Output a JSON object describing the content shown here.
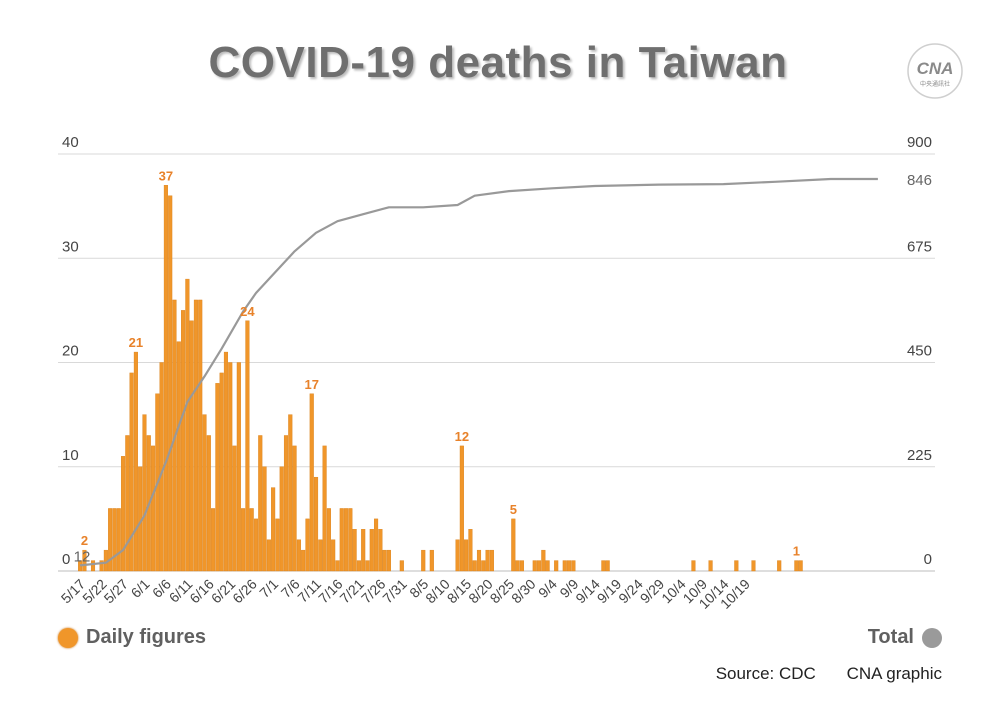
{
  "title": "COVID-19 deaths in Taiwan",
  "logo_text": "CNA 中央通訊社",
  "colors": {
    "bar": "#f0962a",
    "bar_edge": "#d9801a",
    "line": "#999999",
    "label": "#e8822a",
    "grid": "#d9d9d9",
    "axis_text": "#444444"
  },
  "legend": {
    "daily": "Daily figures",
    "total": "Total"
  },
  "footer": {
    "source": "Source: CDC",
    "credit": "CNA graphic"
  },
  "chart_data": {
    "type": "bar",
    "start_date": "5/17",
    "x_tick_labels": [
      "5/17",
      "5/22",
      "5/27",
      "6/1",
      "6/6",
      "6/11",
      "6/16",
      "6/21",
      "6/26",
      "7/1",
      "7/6",
      "7/11",
      "7/16",
      "7/21",
      "7/26",
      "7/31",
      "8/5",
      "8/10",
      "8/15",
      "8/20",
      "8/25",
      "8/30",
      "9/4",
      "9/9",
      "9/14",
      "9/19",
      "9/24",
      "9/29",
      "10/4",
      "10/9",
      "10/14",
      "10/19"
    ],
    "left_axis": {
      "ticks": [
        0,
        10,
        20,
        30,
        40
      ],
      "range": [
        0,
        40
      ]
    },
    "right_axis": {
      "ticks": [
        0,
        225,
        450,
        675,
        900
      ],
      "range": [
        0,
        900
      ]
    },
    "grid": true,
    "series": [
      {
        "name": "Daily figures",
        "kind": "bar",
        "axis": "left",
        "values": [
          1,
          2,
          0,
          1,
          0,
          1,
          2,
          6,
          6,
          6,
          11,
          13,
          19,
          21,
          10,
          15,
          13,
          12,
          17,
          20,
          37,
          36,
          26,
          22,
          25,
          28,
          24,
          26,
          26,
          15,
          13,
          6,
          18,
          19,
          21,
          20,
          12,
          20,
          6,
          24,
          6,
          5,
          13,
          10,
          3,
          8,
          5,
          10,
          13,
          15,
          12,
          3,
          2,
          5,
          17,
          9,
          3,
          12,
          6,
          3,
          1,
          6,
          6,
          6,
          4,
          1,
          4,
          1,
          4,
          5,
          4,
          2,
          2,
          0,
          0,
          1,
          0,
          0,
          0,
          0,
          2,
          0,
          2,
          0,
          0,
          0,
          0,
          0,
          3,
          12,
          3,
          4,
          1,
          2,
          1,
          2,
          2,
          0,
          0,
          0,
          0,
          5,
          1,
          1,
          0,
          0,
          1,
          1,
          2,
          1,
          0,
          1,
          0,
          1,
          1,
          1,
          0,
          0,
          0,
          0,
          0,
          0,
          1,
          1,
          0,
          0,
          0,
          0,
          0,
          0,
          0,
          0,
          0,
          0,
          0,
          0,
          0,
          0,
          0,
          0,
          0,
          0,
          0,
          1,
          0,
          0,
          0,
          1,
          0,
          0,
          0,
          0,
          0,
          1,
          0,
          0,
          0,
          1,
          0,
          0,
          0,
          0,
          0,
          1,
          0,
          0,
          0,
          1,
          1,
          0,
          0,
          0,
          0,
          0,
          0,
          0,
          0,
          0,
          0,
          0,
          0,
          0,
          0,
          0,
          0,
          0
        ]
      },
      {
        "name": "Total",
        "kind": "line",
        "axis": "right",
        "points": [
          [
            0,
            12
          ],
          [
            6,
            18
          ],
          [
            10,
            45
          ],
          [
            15,
            120
          ],
          [
            20,
            235
          ],
          [
            25,
            365
          ],
          [
            29,
            420
          ],
          [
            33,
            480
          ],
          [
            38,
            560
          ],
          [
            41,
            600
          ],
          [
            45,
            640
          ],
          [
            50,
            690
          ],
          [
            55,
            730
          ],
          [
            60,
            755
          ],
          [
            66,
            770
          ],
          [
            72,
            785
          ],
          [
            80,
            785
          ],
          [
            88,
            790
          ],
          [
            92,
            810
          ],
          [
            100,
            820
          ],
          [
            110,
            826
          ],
          [
            120,
            831
          ],
          [
            135,
            834
          ],
          [
            150,
            835
          ],
          [
            162,
            840
          ],
          [
            175,
            846
          ],
          [
            186,
            846
          ]
        ]
      }
    ],
    "annotations": [
      {
        "series": "Total",
        "index": 0,
        "text": "12",
        "value": 12
      },
      {
        "series": "Total",
        "index": 186,
        "text": "846",
        "value": 846
      },
      {
        "series": "Daily figures",
        "index": 1,
        "text": "2",
        "value": 2
      },
      {
        "series": "Daily figures",
        "index": 13,
        "text": "21",
        "value": 21
      },
      {
        "series": "Daily figures",
        "index": 20,
        "text": "37",
        "value": 37
      },
      {
        "series": "Daily figures",
        "index": 39,
        "text": "24",
        "value": 24
      },
      {
        "series": "Daily figures",
        "index": 54,
        "text": "17",
        "value": 17
      },
      {
        "series": "Daily figures",
        "index": 89,
        "text": "12",
        "value": 12
      },
      {
        "series": "Daily figures",
        "index": 101,
        "text": "5",
        "value": 5
      },
      {
        "series": "Daily figures",
        "index": 167,
        "text": "1",
        "value": 1
      }
    ]
  }
}
